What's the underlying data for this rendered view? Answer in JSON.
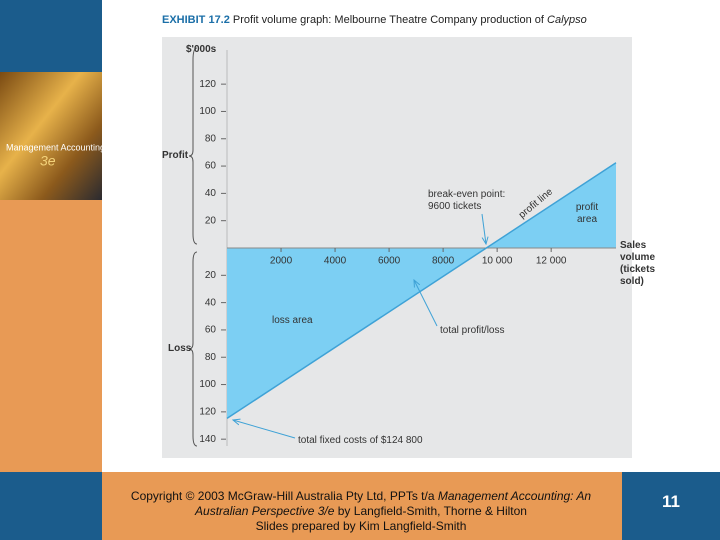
{
  "chart_data": {
    "type": "line",
    "title_label": "EXHIBIT 17.2",
    "title": "Profit volume graph: Melbourne Theatre Company production of",
    "title_emphasis": "Calypso",
    "y_unit": "$'000s",
    "profit_label": "Profit",
    "loss_label": "Loss",
    "x_label": "Sales volume (tickets sold)",
    "x": [
      0,
      9600,
      14400
    ],
    "series": [
      {
        "name": "total profit/loss",
        "color": "#3fa2d6",
        "fill": "#7ccff3",
        "values": [
          -124.8,
          0,
          62.4
        ]
      }
    ],
    "xlim": [
      0,
      14400
    ],
    "ylim": [
      -145,
      145
    ],
    "xticks": [
      2000,
      4000,
      6000,
      8000,
      {
        "value": 10000,
        "label": "10 000"
      },
      {
        "value": 12000,
        "label": "12 000"
      }
    ],
    "yticks": [
      120,
      100,
      80,
      60,
      40,
      20,
      {
        "value": -20,
        "label": "20"
      },
      {
        "value": -40,
        "label": "40"
      },
      {
        "value": -60,
        "label": "60"
      },
      {
        "value": -80,
        "label": "80"
      },
      {
        "value": -100,
        "label": "100"
      },
      {
        "value": -120,
        "label": "120"
      },
      {
        "value": -140,
        "label": "140"
      }
    ],
    "annotations": {
      "break_even": "break-even point: 9600 tickets",
      "profit_line": "profit line",
      "profit_area": "profit area",
      "loss_area": "loss area",
      "fixed_costs": "total fixed costs of $124 800"
    }
  },
  "cover": {
    "title": "Management Accounting",
    "edition": "3e"
  },
  "footer": {
    "copyright": "Copyright © 2003 McGraw-Hill Australia Pty Ltd, PPTs t/a ",
    "book_title": "Management Accounting: An Australian Perspective 3/e",
    "authors": " by Langfield-Smith, Thorne & Hilton",
    "prepared": "Slides prepared by Kim Langfield-Smith"
  },
  "page_number": "11"
}
